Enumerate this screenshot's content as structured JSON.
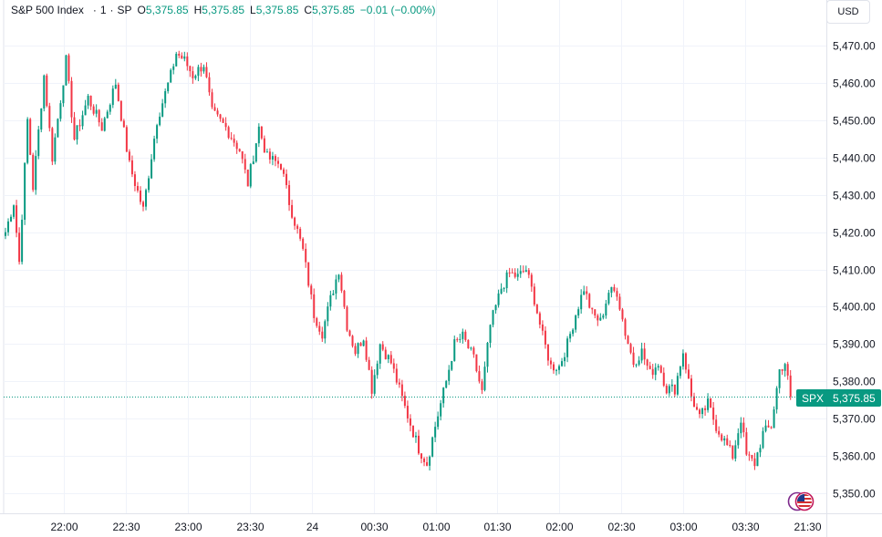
{
  "header": {
    "title": "S&P 500 Index",
    "interval": "1",
    "exchange": "SP",
    "open_label": "O",
    "open": "5,375.85",
    "high_label": "H",
    "high": "5,375.85",
    "low_label": "L",
    "low": "5,375.85",
    "close_label": "C",
    "close": "5,375.85",
    "change": "−0.01 (−0.00%)"
  },
  "currency": "USD",
  "price_tag": {
    "symbol": "SPX",
    "value": "5,375.85"
  },
  "colors": {
    "up": "#089981",
    "down": "#f23645",
    "grid": "#f0f3fa",
    "last_price_line": "#089981"
  },
  "chart_data": {
    "type": "candlestick",
    "last_price": 5375.85,
    "ylim": [
      5345,
      5477
    ],
    "yticks": [
      "5,350.00",
      "5,360.00",
      "5,370.00",
      "5,380.00",
      "5,390.00",
      "5,400.00",
      "5,410.00",
      "5,420.00",
      "5,430.00",
      "5,440.00",
      "5,450.00",
      "5,460.00",
      "5,470.00"
    ],
    "ytick_values": [
      5350,
      5360,
      5370,
      5380,
      5390,
      5400,
      5410,
      5420,
      5430,
      5440,
      5450,
      5460,
      5470
    ],
    "xticks": [
      "22:00",
      "22:30",
      "23:00",
      "23:30",
      "24",
      "00:30",
      "01:00",
      "01:30",
      "02:00",
      "02:30",
      "03:00",
      "03:30",
      "21:30"
    ],
    "xtick_minutes": [
      60,
      90,
      120,
      150,
      180,
      210,
      240,
      270,
      300,
      330,
      360,
      390,
      420
    ],
    "x_domain_minutes": [
      20,
      422
    ],
    "bar_minutes": 1,
    "path": [
      [
        0,
        5420
      ],
      [
        3,
        5428
      ],
      [
        5,
        5412
      ],
      [
        8,
        5450
      ],
      [
        10,
        5432
      ],
      [
        14,
        5462
      ],
      [
        17,
        5440
      ],
      [
        22,
        5466
      ],
      [
        25,
        5445
      ],
      [
        30,
        5456
      ],
      [
        35,
        5448
      ],
      [
        40,
        5460
      ],
      [
        45,
        5438
      ],
      [
        50,
        5426
      ],
      [
        55,
        5450
      ],
      [
        60,
        5462
      ],
      [
        62,
        5468
      ],
      [
        65,
        5466
      ],
      [
        68,
        5462
      ],
      [
        72,
        5465
      ],
      [
        75,
        5452
      ],
      [
        80,
        5448
      ],
      [
        85,
        5442
      ],
      [
        88,
        5433
      ],
      [
        92,
        5448
      ],
      [
        95,
        5440
      ],
      [
        100,
        5438
      ],
      [
        103,
        5428
      ],
      [
        108,
        5415
      ],
      [
        112,
        5398
      ],
      [
        115,
        5393
      ],
      [
        118,
        5402
      ],
      [
        121,
        5410
      ],
      [
        124,
        5395
      ],
      [
        127,
        5388
      ],
      [
        130,
        5392
      ],
      [
        133,
        5378
      ],
      [
        136,
        5390
      ],
      [
        140,
        5385
      ],
      [
        145,
        5373
      ],
      [
        150,
        5362
      ],
      [
        153,
        5358
      ],
      [
        156,
        5368
      ],
      [
        160,
        5380
      ],
      [
        163,
        5390
      ],
      [
        166,
        5392
      ],
      [
        170,
        5386
      ],
      [
        173,
        5377
      ],
      [
        176,
        5395
      ],
      [
        180,
        5405
      ],
      [
        183,
        5409
      ],
      [
        186,
        5408
      ],
      [
        189,
        5410
      ],
      [
        192,
        5402
      ],
      [
        195,
        5392
      ],
      [
        198,
        5384
      ],
      [
        201,
        5384
      ],
      [
        204,
        5390
      ],
      [
        207,
        5398
      ],
      [
        210,
        5405
      ],
      [
        213,
        5398
      ],
      [
        216,
        5396
      ],
      [
        219,
        5404
      ],
      [
        222,
        5404
      ],
      [
        225,
        5393
      ],
      [
        228,
        5385
      ],
      [
        231,
        5388
      ],
      [
        234,
        5382
      ],
      [
        237,
        5385
      ],
      [
        240,
        5378
      ],
      [
        243,
        5378
      ],
      [
        246,
        5388
      ],
      [
        249,
        5376
      ],
      [
        252,
        5370
      ],
      [
        255,
        5374
      ],
      [
        258,
        5368
      ],
      [
        261,
        5364
      ],
      [
        264,
        5360
      ],
      [
        267,
        5370
      ],
      [
        269,
        5360
      ],
      [
        272,
        5358
      ],
      [
        275,
        5366
      ],
      [
        278,
        5368
      ],
      [
        281,
        5383
      ],
      [
        283,
        5385
      ],
      [
        285,
        5376
      ]
    ]
  }
}
